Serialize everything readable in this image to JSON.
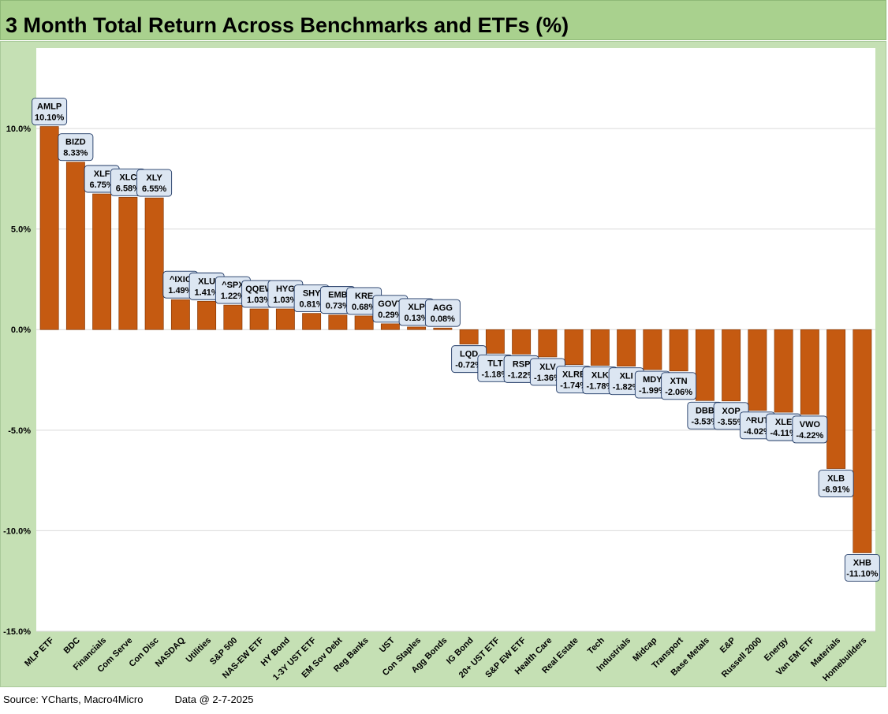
{
  "title": "3 Month Total Return Across Benchmarks and ETFs (%)",
  "footer": {
    "source": "Source: YCharts, Macro4Micro",
    "date": "Data @ 2-7-2025"
  },
  "colors": {
    "bar": "#c55a11",
    "bar_border": "#7f3200",
    "background": "#c5e0b4",
    "title_bar": "#a9d18e",
    "label_box": "#dce6f2"
  },
  "chart_data": {
    "type": "bar",
    "title": "3 Month Total Return Across Benchmarks and ETFs (%)",
    "xlabel": "",
    "ylabel": "",
    "ylim": [
      -15,
      15
    ],
    "yticks": [
      "-15.0%",
      "-10.0%",
      "-5.0%",
      "0.0%",
      "5.0%",
      "10.0%"
    ],
    "ytick_values": [
      -15,
      -10,
      -5,
      0,
      5,
      10
    ],
    "grid": true,
    "legend": "none",
    "categories": [
      "MLP ETF",
      "BDC",
      "Financials",
      "Com Serve",
      "Con Disc",
      "NASDAQ",
      "Utilities",
      "S&P 500",
      "NAS-EW ETF",
      "HY Bond",
      "1-3Y UST ETF",
      "EM Sov Debt",
      "Reg Banks",
      "UST",
      "Con Staples",
      "Agg Bonds",
      "IG Bond",
      "20+ UST ETF",
      "S&P EW ETF",
      "Health Care",
      "Real Estate",
      "Tech",
      "Industrials",
      "Midcap",
      "Transport",
      "Base Metals",
      "E&P",
      "Russell 2000",
      "Energy",
      "Van EM ETF",
      "Materials",
      "Homebuilders"
    ],
    "tickers": [
      "AMLP",
      "BIZD",
      "XLF",
      "XLC",
      "XLY",
      "^IXIC",
      "XLU",
      "^SPX",
      "QQEW",
      "HYG",
      "SHY",
      "EMB",
      "KRE",
      "GOVT",
      "XLP",
      "AGG",
      "LQD",
      "TLT",
      "RSP",
      "XLV",
      "XLRE",
      "XLK",
      "XLI",
      "MDY",
      "XTN",
      "DBB",
      "XOP",
      "^RUT",
      "XLE",
      "VWO",
      "XLB",
      "XHB"
    ],
    "data_labels": [
      "10.10%",
      "8.33%",
      "6.75%",
      "6.58%",
      "6.55%",
      "1.49%",
      "1.41%",
      "1.22%",
      "1.03%",
      "1.03%",
      "0.81%",
      "0.73%",
      "0.68%",
      "0.29%",
      "0.13%",
      "0.08%",
      "-0.72%",
      "-1.18%",
      "-1.22%",
      "-1.36%",
      "-1.74%",
      "-1.78%",
      "-1.82%",
      "-1.99%",
      "-2.06%",
      "-3.53%",
      "-3.55%",
      "-4.02%",
      "-4.11%",
      "-4.22%",
      "-6.91%",
      "-11.10%"
    ],
    "values": [
      10.1,
      8.33,
      6.75,
      6.58,
      6.55,
      1.49,
      1.41,
      1.22,
      1.03,
      1.03,
      0.81,
      0.73,
      0.68,
      0.29,
      0.13,
      0.08,
      -0.72,
      -1.18,
      -1.22,
      -1.36,
      -1.74,
      -1.78,
      -1.82,
      -1.99,
      -2.06,
      -3.53,
      -3.55,
      -4.02,
      -4.11,
      -4.22,
      -6.91,
      -11.1
    ]
  }
}
